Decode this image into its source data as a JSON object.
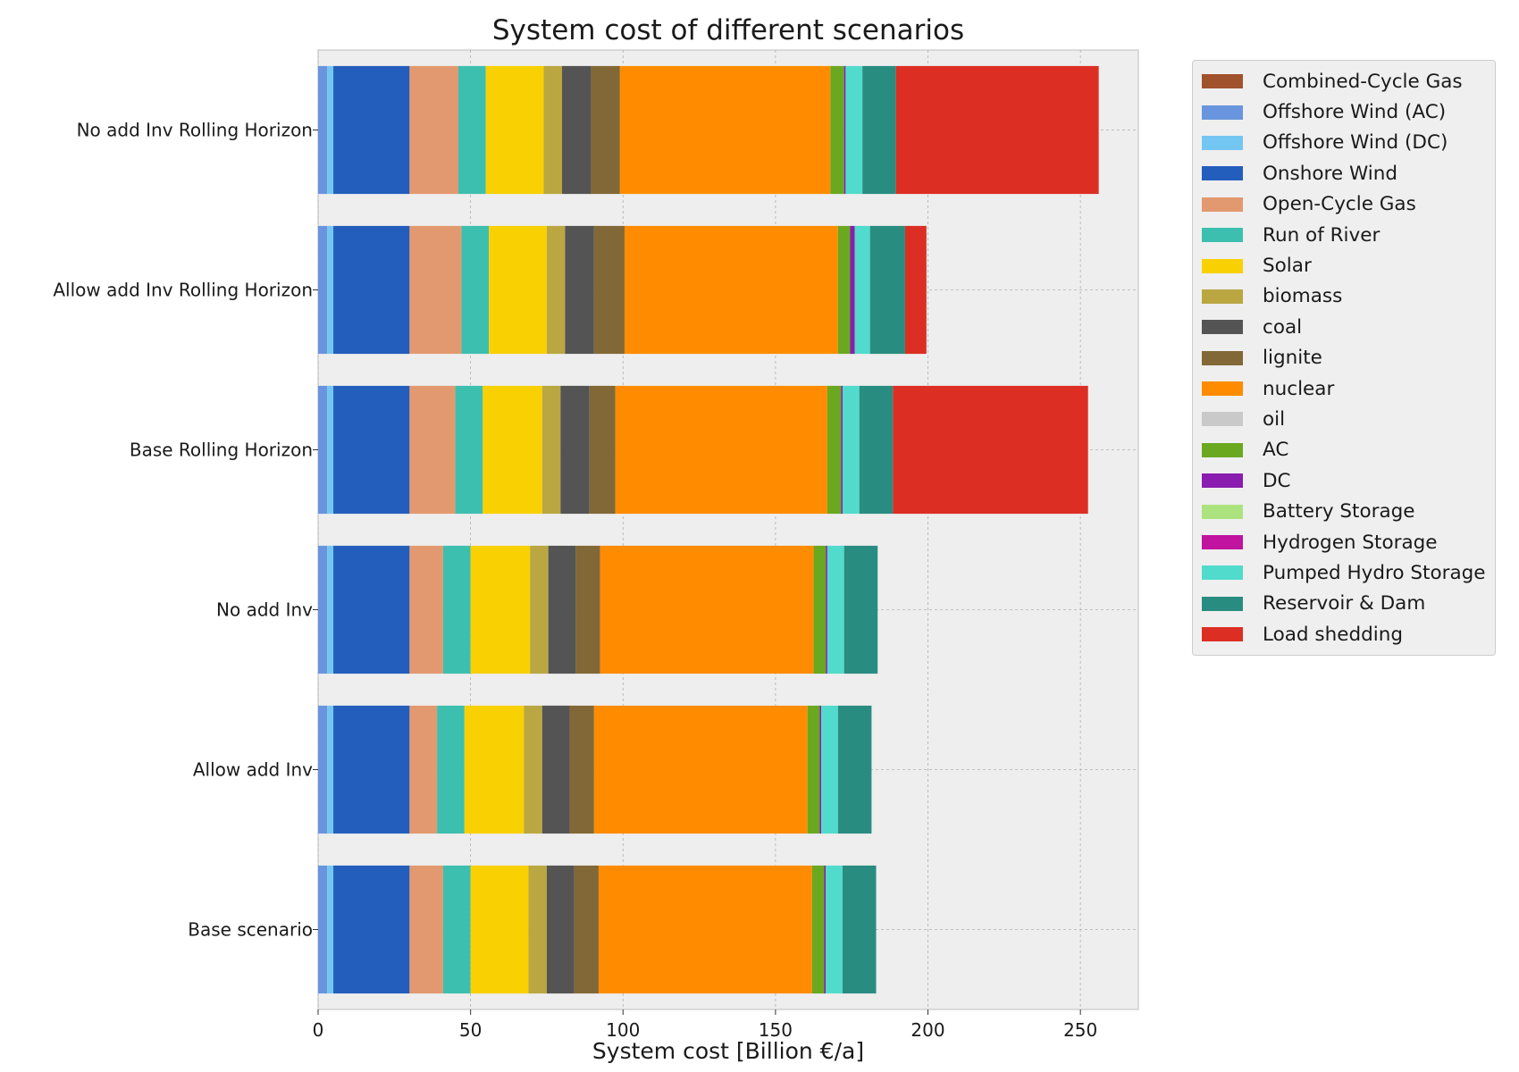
{
  "chart_data": {
    "type": "bar",
    "orientation": "horizontal",
    "stacked": true,
    "title": "System cost of different scenarios",
    "xlabel": "System cost [Billion €/a]",
    "ylabel": "",
    "xlim": [
      0,
      269
    ],
    "xticks": [
      0,
      50,
      100,
      150,
      200,
      250
    ],
    "grid": true,
    "legend_position": "outside-right",
    "categories": [
      "No add Inv Rolling Horizon",
      "Allow add Inv Rolling Horizon",
      "Base Rolling Horizon",
      "No add Inv",
      "Allow add Inv",
      "Base scenario"
    ],
    "series": [
      {
        "name": "Combined-Cycle Gas",
        "color": "#a0522d",
        "values": [
          0,
          0,
          0,
          0,
          0,
          0
        ]
      },
      {
        "name": "Offshore Wind (AC)",
        "color": "#6895dd",
        "values": [
          3.0,
          3.0,
          3.0,
          3.0,
          3.0,
          3.0
        ]
      },
      {
        "name": "Offshore Wind (DC)",
        "color": "#74c6f2",
        "values": [
          2.0,
          2.0,
          2.0,
          2.0,
          2.0,
          2.0
        ]
      },
      {
        "name": "Onshore Wind",
        "color": "#235ebc",
        "values": [
          25.0,
          25.0,
          25.0,
          25.0,
          25.0,
          25.0
        ]
      },
      {
        "name": "Open-Cycle Gas",
        "color": "#e3996f",
        "values": [
          16.0,
          17.0,
          15.0,
          11.0,
          9.0,
          11.0
        ]
      },
      {
        "name": "Run of River",
        "color": "#3dbfb0",
        "values": [
          9.0,
          9.0,
          9.0,
          9.0,
          9.0,
          9.0
        ]
      },
      {
        "name": "Solar",
        "color": "#f9d002",
        "values": [
          19.0,
          19.0,
          19.5,
          19.5,
          19.5,
          19.0
        ]
      },
      {
        "name": "biomass",
        "color": "#baa741",
        "values": [
          6.0,
          6.0,
          6.0,
          6.0,
          6.0,
          6.0
        ]
      },
      {
        "name": "coal",
        "color": "#545454",
        "values": [
          9.5,
          9.5,
          9.5,
          9.0,
          9.0,
          9.0
        ]
      },
      {
        "name": "lignite",
        "color": "#826837",
        "values": [
          9.5,
          10.0,
          8.5,
          8.0,
          8.0,
          8.0
        ]
      },
      {
        "name": "nuclear",
        "color": "#ff8c00",
        "values": [
          69.0,
          70.0,
          69.5,
          70.0,
          70.0,
          70.0
        ]
      },
      {
        "name": "oil",
        "color": "#c9c9c9",
        "values": [
          0,
          0,
          0,
          0,
          0,
          0
        ]
      },
      {
        "name": "AC",
        "color": "#6aa820",
        "values": [
          4.5,
          4.0,
          4.5,
          4.0,
          4.0,
          4.0
        ]
      },
      {
        "name": "DC",
        "color": "#8a1caf",
        "values": [
          0.5,
          1.5,
          0.5,
          0.5,
          0.5,
          0.5
        ]
      },
      {
        "name": "Battery Storage",
        "color": "#ace37f",
        "values": [
          0,
          0,
          0,
          0,
          0,
          0
        ]
      },
      {
        "name": "Hydrogen Storage",
        "color": "#bf13a0",
        "values": [
          0,
          0,
          0,
          0,
          0,
          0
        ]
      },
      {
        "name": "Pumped Hydro Storage",
        "color": "#51dbcc",
        "values": [
          5.5,
          5.0,
          5.5,
          5.5,
          5.5,
          5.5
        ]
      },
      {
        "name": "Reservoir & Dam",
        "color": "#298c81",
        "values": [
          11.0,
          11.5,
          11.0,
          11.0,
          11.0,
          11.0
        ]
      },
      {
        "name": "Load shedding",
        "color": "#dd2e23",
        "values": [
          66.5,
          7.0,
          64.0,
          0,
          0,
          0
        ]
      }
    ]
  }
}
